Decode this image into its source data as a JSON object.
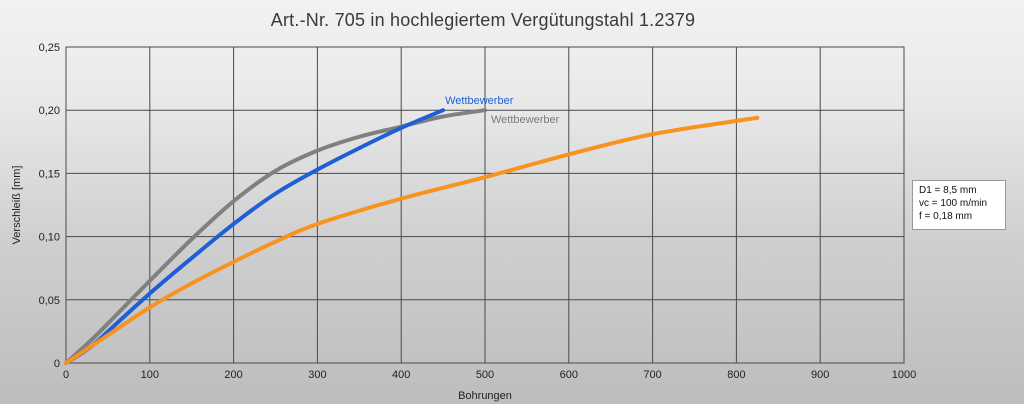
{
  "chart_data": {
    "type": "line",
    "title": "Art.-Nr. 705 in hochlegiertem Vergütungstahl 1.2379",
    "xlabel": "Bohrungen",
    "ylabel": "Verschleiß [mm]",
    "xlim": [
      0,
      1000
    ],
    "ylim": [
      0,
      0.25
    ],
    "x_ticks": [
      0,
      100,
      200,
      300,
      400,
      500,
      600,
      700,
      800,
      900,
      1000
    ],
    "x_tick_labels": [
      "0",
      "100",
      "200",
      "300",
      "400",
      "500",
      "600",
      "700",
      "800",
      "900",
      "1000"
    ],
    "y_ticks": [
      0,
      0.05,
      0.1,
      0.15,
      0.2,
      0.25
    ],
    "y_tick_labels": [
      "0",
      "0,05",
      "0,10",
      "0,15",
      "0,20",
      "0,25"
    ],
    "grid": true,
    "series": [
      {
        "name": "Wettbewerber",
        "color": "#808080",
        "label_color": "#7a7a7a",
        "x": [
          0,
          30,
          60,
          100,
          150,
          200,
          250,
          300,
          350,
          400,
          450,
          500
        ],
        "y": [
          0,
          0.018,
          0.038,
          0.065,
          0.098,
          0.128,
          0.152,
          0.168,
          0.179,
          0.187,
          0.195,
          0.2
        ]
      },
      {
        "name": "Wettbewerber",
        "color": "#1f5fd6",
        "label_color": "#1f5fd6",
        "x": [
          0,
          30,
          60,
          100,
          150,
          200,
          250,
          300,
          350,
          400,
          450
        ],
        "y": [
          0,
          0.013,
          0.031,
          0.055,
          0.083,
          0.11,
          0.134,
          0.153,
          0.17,
          0.186,
          0.2
        ]
      },
      {
        "name": "",
        "color": "#f7931e",
        "x": [
          0,
          50,
          100,
          150,
          200,
          250,
          300,
          400,
          500,
          600,
          700,
          825
        ],
        "y": [
          0,
          0.022,
          0.044,
          0.063,
          0.08,
          0.096,
          0.11,
          0.13,
          0.147,
          0.165,
          0.181,
          0.194
        ]
      }
    ],
    "annotations": {
      "params": [
        "D1 = 8,5 mm",
        "vc = 100 m/min",
        "f = 0,18 mm"
      ]
    }
  }
}
